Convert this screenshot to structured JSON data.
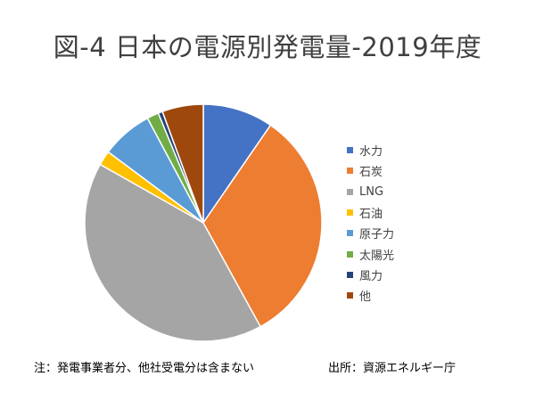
{
  "chart_data": {
    "type": "pie",
    "title": "図-4 日本の電源別発電量-2019年度",
    "slices": [
      {
        "label": "水力",
        "value": 9.6,
        "color": "#4472C4"
      },
      {
        "label": "石炭",
        "value": 32.4,
        "color": "#ED7D31"
      },
      {
        "label": "LNG",
        "value": 41.2,
        "color": "#A5A5A5"
      },
      {
        "label": "石油",
        "value": 2.0,
        "color": "#FFC000"
      },
      {
        "label": "原子力",
        "value": 7.0,
        "color": "#5B9BD5"
      },
      {
        "label": "太陽光",
        "value": 1.6,
        "color": "#70AD47"
      },
      {
        "label": "風力",
        "value": 0.6,
        "color": "#264478"
      },
      {
        "label": "他",
        "value": 5.6,
        "color": "#9E480E"
      }
    ],
    "start_angle": "12 o'clock",
    "direction": "clockwise",
    "legend_position": "right"
  },
  "footer": {
    "note": "注：発電事業者分、他社受電分は含まない",
    "source": "出所：資源エネルギー庁"
  }
}
